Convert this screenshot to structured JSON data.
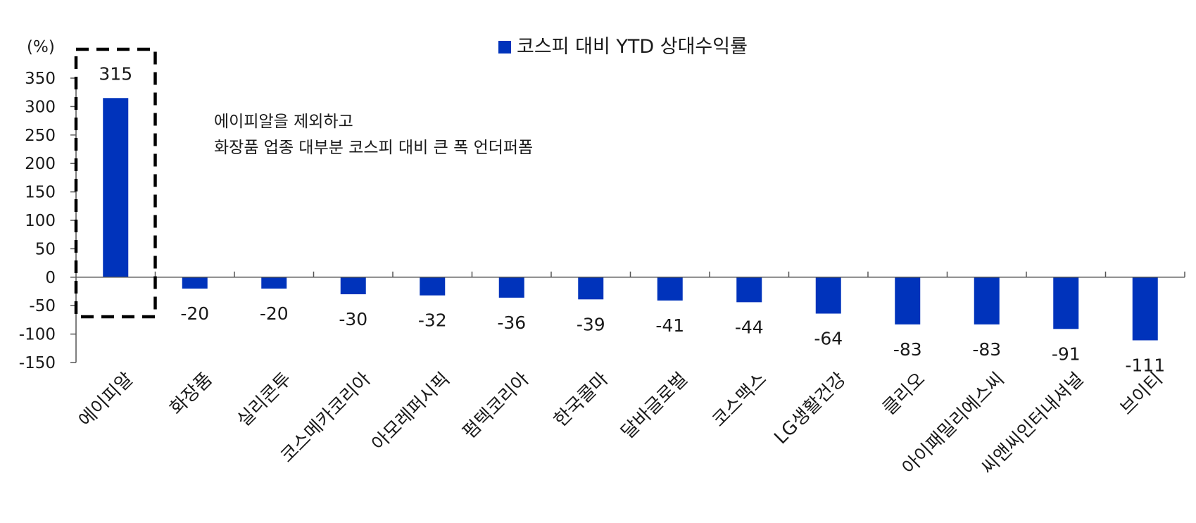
{
  "chart_data": {
    "type": "bar",
    "unit_label": "(%)",
    "legend": {
      "label": "코스피 대비 YTD 상대수익률",
      "placement": "top-center"
    },
    "categories": [
      "에이피알",
      "화장품",
      "실리콘투",
      "코스메카코리아",
      "아모레퍼시픽",
      "펌텍코리아",
      "한국콜마",
      "달바글로벌",
      "코스맥스",
      "LG생활건강",
      "클리오",
      "아이패밀리에스씨",
      "씨앤씨인터내셔널",
      "브이티"
    ],
    "series": [
      {
        "name": "코스피 대비 YTD 상대수익률",
        "values": [
          315,
          -20,
          -20,
          -30,
          -32,
          -36,
          -39,
          -41,
          -44,
          -64,
          -83,
          -83,
          -91,
          -111
        ]
      }
    ],
    "data_labels": [
      "315",
      "-20",
      "-20",
      "-30",
      "-32",
      "-36",
      "-39",
      "-41",
      "-44",
      "-64",
      "-83",
      "-83",
      "-91",
      "-111"
    ],
    "y_ticks": [
      "350",
      "300",
      "250",
      "200",
      "150",
      "100",
      "50",
      "0",
      "-50",
      "-100",
      "-150"
    ],
    "ylim": [
      -150,
      350
    ],
    "grid": false,
    "annotation": {
      "lines": [
        "에이피알을 제외하고",
        "화장품 업종 대부분 코스피 대비 큰 폭 언더퍼폼"
      ]
    },
    "highlight_category": "에이피알",
    "colors": {
      "bar": "#0033BB",
      "axis": "#555555",
      "highlight_box": "#000000"
    }
  }
}
